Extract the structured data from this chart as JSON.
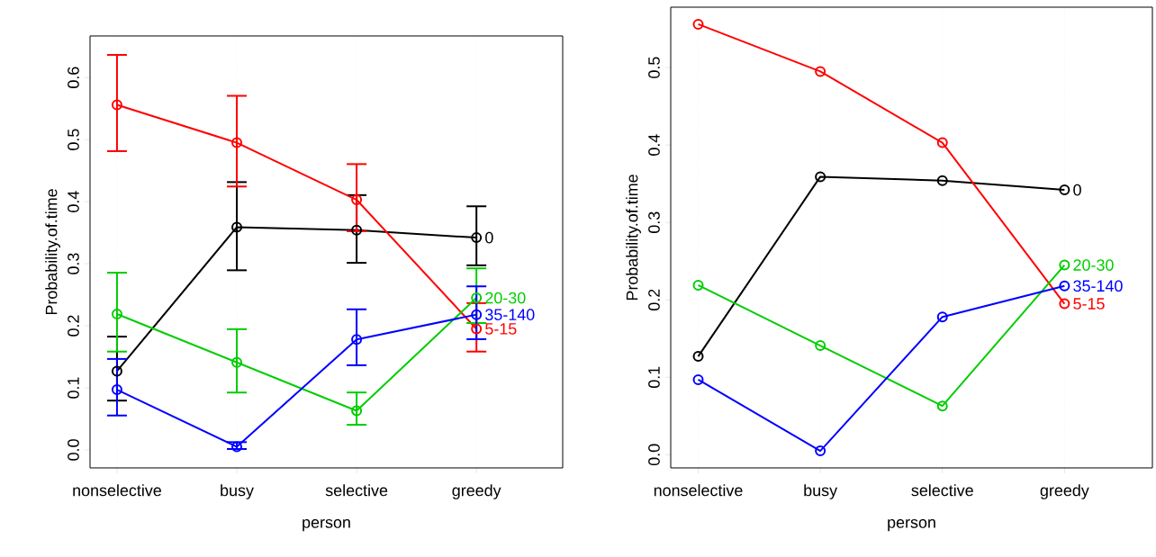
{
  "chart_data": [
    {
      "type": "line",
      "xlabel": "person",
      "ylabel": "Probability.of.time",
      "categories": [
        "nonselective",
        "busy",
        "selective",
        "greedy"
      ],
      "ylim": [
        -0.029,
        0.667
      ],
      "yticks": [
        {
          "value": 0,
          "label": "0.0"
        },
        0.1,
        0.2,
        0.3,
        0.4,
        0.5,
        0.6
      ],
      "grid": "x",
      "marker": "circle",
      "line_style": "solid",
      "series": [
        {
          "name": "0",
          "color": "#000000",
          "values": [
            0.127,
            0.359,
            0.354,
            0.342
          ],
          "errors": [
            [
              0.078,
              0.184
            ],
            [
              0.288,
              0.433
            ],
            [
              0.3,
              0.412
            ],
            [
              0.296,
              0.394
            ]
          ]
        },
        {
          "name": "5-15",
          "color": "#ff0000",
          "values": [
            0.556,
            0.495,
            0.403,
            0.195
          ],
          "errors": [
            [
              0.48,
              0.638
            ],
            [
              0.423,
              0.572
            ],
            [
              0.351,
              0.462
            ],
            [
              0.157,
              0.238
            ]
          ]
        },
        {
          "name": "20-30",
          "color": "#00cd00",
          "values": [
            0.219,
            0.141,
            0.063,
            0.245
          ],
          "errors": [
            [
              0.157,
              0.287
            ],
            [
              0.091,
              0.196
            ],
            [
              0.039,
              0.094
            ],
            [
              0.203,
              0.294
            ]
          ]
        },
        {
          "name": "35-140",
          "color": "#0000ff",
          "values": [
            0.097,
            0.005,
            0.178,
            0.218
          ],
          "errors": [
            [
              0.054,
              0.148
            ],
            [
              0.0,
              0.014
            ],
            [
              0.135,
              0.228
            ],
            [
              0.177,
              0.265
            ]
          ]
        }
      ]
    },
    {
      "type": "line",
      "xlabel": "person",
      "ylabel": "Probability.of.time",
      "categories": [
        "nonselective",
        "busy",
        "selective",
        "greedy"
      ],
      "ylim": [
        -0.017,
        0.578
      ],
      "yticks": [
        {
          "value": 0,
          "label": "0.0"
        },
        0.1,
        0.2,
        0.3,
        0.4,
        0.5
      ],
      "grid": "x",
      "marker": "circle",
      "line_style": "solid",
      "series": [
        {
          "name": "0",
          "color": "#000000",
          "values": [
            0.127,
            0.359,
            0.354,
            0.342
          ]
        },
        {
          "name": "5-15",
          "color": "#ff0000",
          "values": [
            0.556,
            0.495,
            0.403,
            0.195
          ]
        },
        {
          "name": "20-30",
          "color": "#00cd00",
          "values": [
            0.219,
            0.141,
            0.063,
            0.245
          ]
        },
        {
          "name": "35-140",
          "color": "#0000ff",
          "values": [
            0.097,
            0.005,
            0.178,
            0.218
          ]
        }
      ]
    }
  ]
}
